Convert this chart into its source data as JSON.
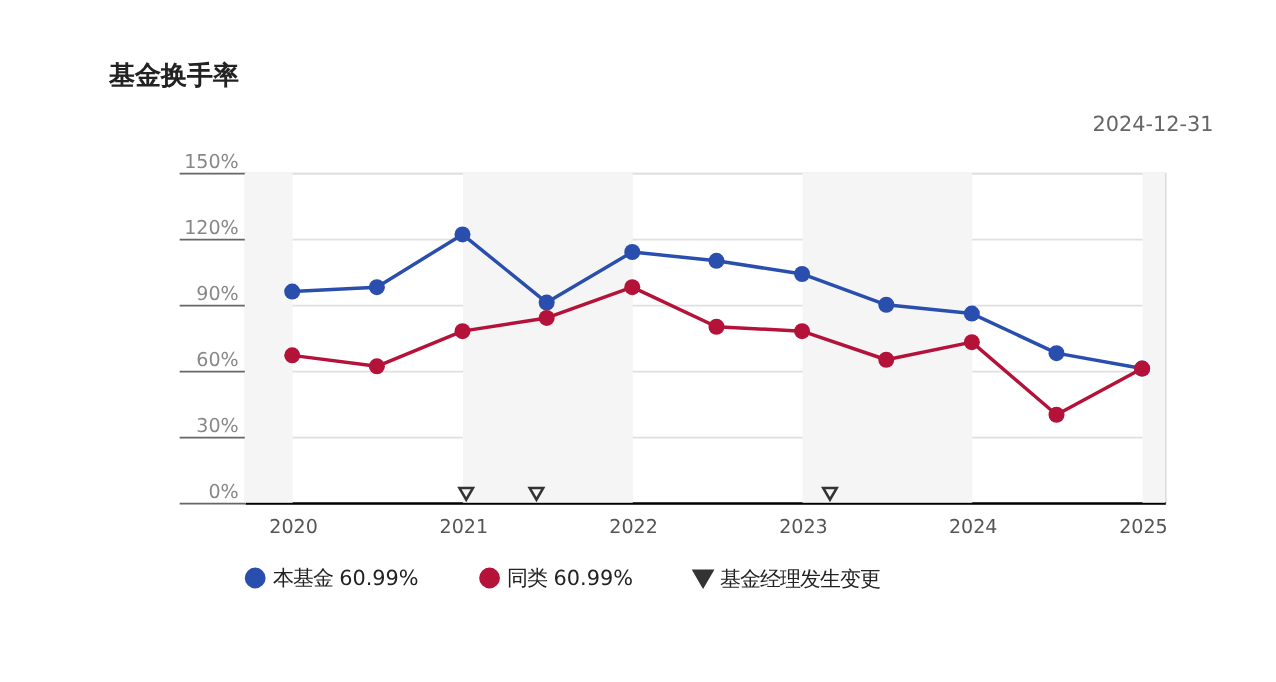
{
  "chart_data": {
    "type": "line",
    "title": "基金换手率",
    "annotations": [
      "2024-12-31"
    ],
    "x": [
      "2019-12-31",
      "2020-06-30",
      "2020-12-31",
      "2021-06-30",
      "2021-12-31",
      "2022-06-30",
      "2022-12-31",
      "2023-06-30",
      "2023-12-31",
      "2024-06-30",
      "2024-12-31"
    ],
    "series": [
      {
        "name": "本基金 60.99%",
        "color": "#2a4ead",
        "values": [
          96,
          98,
          122,
          91,
          114,
          110,
          104,
          90,
          86,
          68,
          60.99
        ]
      },
      {
        "name": "同类 60.99%",
        "color": "#b5123a",
        "values": [
          67,
          62,
          78,
          84,
          98,
          80,
          78,
          65,
          73,
          40,
          60.99
        ]
      },
      {
        "name": "基金经理发生变更",
        "type": "scatter",
        "marker": "triangle",
        "color": "#333333",
        "x": [
          "2021-01-08",
          "2021-06-08",
          "2023-03-01"
        ],
        "values": [
          4,
          4,
          4
        ]
      }
    ],
    "marker": "circle",
    "xlim": [
      "2019-09-20",
      "2025-02-18"
    ],
    "xticks": [
      {
        "value": "2020-01-01",
        "label": "2020"
      },
      {
        "value": "2021-01-01",
        "label": "2021"
      },
      {
        "value": "2022-01-01",
        "label": "2022"
      },
      {
        "value": "2023-01-01",
        "label": "2023"
      },
      {
        "value": "2024-01-01",
        "label": "2024"
      },
      {
        "value": "2025-01-01",
        "label": "2025"
      }
    ],
    "ylim": [
      0,
      150
    ],
    "yticks": [
      {
        "value": 0,
        "label": "0%"
      },
      {
        "value": 30,
        "label": "30%"
      },
      {
        "value": 60,
        "label": "60%"
      },
      {
        "value": 90,
        "label": "90%"
      },
      {
        "value": 120,
        "label": "120%"
      },
      {
        "value": 150,
        "label": "150%"
      }
    ],
    "bands": [
      {
        "axis": "x",
        "from": "2019-09-20",
        "to": "2020-01-01",
        "color": "#f5f5f5"
      },
      {
        "axis": "x",
        "from": "2021-01-01",
        "to": "2022-01-01",
        "color": "#f5f5f5"
      },
      {
        "axis": "x",
        "from": "2023-01-01",
        "to": "2024-01-01",
        "color": "#f5f5f5"
      },
      {
        "axis": "x",
        "from": "2025-01-01",
        "to": "2025-02-18",
        "color": "#f5f5f5"
      }
    ],
    "grid": "y",
    "legend": "bottom"
  }
}
